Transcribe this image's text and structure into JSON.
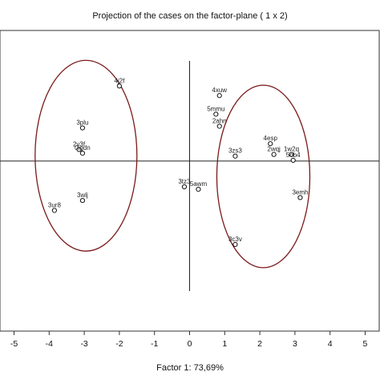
{
  "chart_data": {
    "type": "scatter",
    "title": "Projection of the cases on the factor-plane (  1 x   2)",
    "xlabel": "Factor 1: 73,69%",
    "ylabel": "",
    "xlim": [
      -5.4,
      5.4
    ],
    "ylim": [
      -4.1,
      3.15
    ],
    "x_ticks": [
      -5,
      -4,
      -3,
      -2,
      -1,
      0,
      1,
      2,
      3,
      4,
      5
    ],
    "x_tick_labels": [
      "-5",
      "-4",
      "-3",
      "-2",
      "-1",
      "0",
      "1",
      "2",
      "3",
      "4",
      "5"
    ],
    "grid": false,
    "points": [
      {
        "label": "4j2f",
        "x": -2.0,
        "y": 1.81
      },
      {
        "label": "3plu",
        "x": -3.05,
        "y": 0.8
      },
      {
        "label": "2v3f",
        "x": -3.15,
        "y": 0.28
      },
      {
        "label": "0igdn",
        "x": -3.05,
        "y": 0.19
      },
      {
        "label": "3wlj",
        "x": -3.05,
        "y": -0.95
      },
      {
        "label": "3ur8",
        "x": -3.85,
        "y": -1.19
      },
      {
        "label": "4xuw",
        "x": 0.85,
        "y": 1.58
      },
      {
        "label": "5mmu",
        "x": 0.75,
        "y": 1.13
      },
      {
        "label": "2ahn",
        "x": 0.85,
        "y": 0.84
      },
      {
        "label": "3zs3",
        "x": 1.3,
        "y": 0.12
      },
      {
        "label": "4esp",
        "x": 2.3,
        "y": 0.42
      },
      {
        "label": "2wqj",
        "x": 2.4,
        "y": 0.16
      },
      {
        "label": "1w2q",
        "x": 2.9,
        "y": 0.16
      },
      {
        "label": "5ob4",
        "x": 2.95,
        "y": 0.02
      },
      {
        "label": "3tz3",
        "x": -0.15,
        "y": -0.62
      },
      {
        "label": "5awm",
        "x": 0.25,
        "y": -0.68
      },
      {
        "label": "3emh",
        "x": 3.15,
        "y": -0.88
      },
      {
        "label": "3c3v",
        "x": 1.3,
        "y": -2.01
      }
    ],
    "ellipses": [
      {
        "cx": -2.95,
        "cy": 0.13,
        "rx": 2.9,
        "ry": 2.3
      },
      {
        "cx": 2.1,
        "cy": -0.37,
        "rx": 2.65,
        "ry": 2.2
      }
    ]
  }
}
